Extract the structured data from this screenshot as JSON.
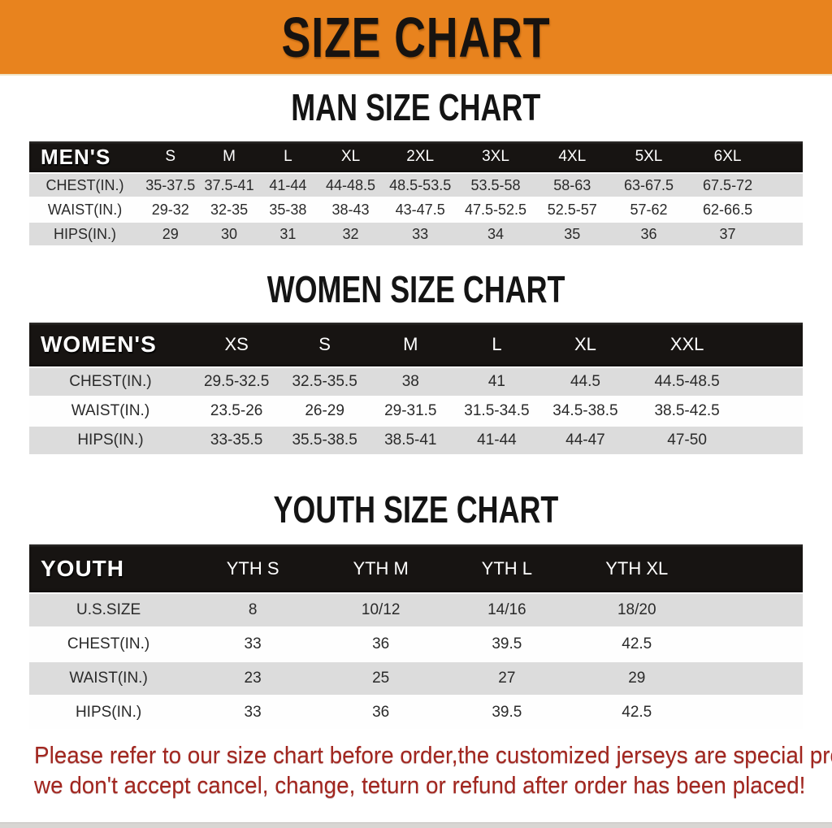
{
  "banner": {
    "title": "SIZE CHART"
  },
  "sections": [
    {
      "id": "men",
      "title": "MAN SIZE CHART",
      "group_label": "MEN'S",
      "columns": [
        "S",
        "M",
        "L",
        "XL",
        "2XL",
        "3XL",
        "4XL",
        "5XL",
        "6XL"
      ],
      "rows": [
        {
          "label": "CHEST(IN.)",
          "values": [
            "35-37.5",
            "37.5-41",
            "41-44",
            "44-48.5",
            "48.5-53.5",
            "53.5-58",
            "58-63",
            "63-67.5",
            "67.5-72"
          ]
        },
        {
          "label": "WAIST(IN.)",
          "values": [
            "29-32",
            "32-35",
            "35-38",
            "38-43",
            "43-47.5",
            "47.5-52.5",
            "52.5-57",
            "57-62",
            "62-66.5"
          ]
        },
        {
          "label": "HIPS(IN.)",
          "values": [
            "29",
            "30",
            "31",
            "32",
            "33",
            "34",
            "35",
            "36",
            "37"
          ]
        }
      ]
    },
    {
      "id": "women",
      "title": "WOMEN SIZE CHART",
      "group_label": "WOMEN'S",
      "columns": [
        "XS",
        "S",
        "M",
        "L",
        "XL",
        "XXL"
      ],
      "rows": [
        {
          "label": "CHEST(IN.)",
          "values": [
            "29.5-32.5",
            "32.5-35.5",
            "38",
            "41",
            "44.5",
            "44.5-48.5"
          ]
        },
        {
          "label": "WAIST(IN.)",
          "values": [
            "23.5-26",
            "26-29",
            "29-31.5",
            "31.5-34.5",
            "34.5-38.5",
            "38.5-42.5"
          ]
        },
        {
          "label": "HIPS(IN.)",
          "values": [
            "33-35.5",
            "35.5-38.5",
            "38.5-41",
            "41-44",
            "44-47",
            "47-50"
          ]
        }
      ]
    },
    {
      "id": "youth",
      "title": "YOUTH SIZE CHART",
      "group_label": "YOUTH",
      "columns": [
        "YTH S",
        "YTH M",
        "YTH L",
        "YTH XL"
      ],
      "rows": [
        {
          "label": "U.S.SIZE",
          "values": [
            "8",
            "10/12",
            "14/16",
            "18/20"
          ]
        },
        {
          "label": "CHEST(IN.)",
          "values": [
            "33",
            "36",
            "39.5",
            "42.5"
          ]
        },
        {
          "label": "WAIST(IN.)",
          "values": [
            "23",
            "25",
            "27",
            "29"
          ]
        },
        {
          "label": "HIPS(IN.)",
          "values": [
            "33",
            "36",
            "39.5",
            "42.5"
          ]
        }
      ]
    }
  ],
  "disclaimer": {
    "lines": [
      "Please refer to our size chart before order,the customized jerseys are special products,",
      "we don't accept cancel, change, teturn or refund after order has been placed!"
    ]
  },
  "colors": {
    "banner_bg": "#E8831E",
    "header_bar_bg": "#171412",
    "row_alt_bg": "#DCDCDC",
    "disclaimer_text": "#A2261F"
  }
}
